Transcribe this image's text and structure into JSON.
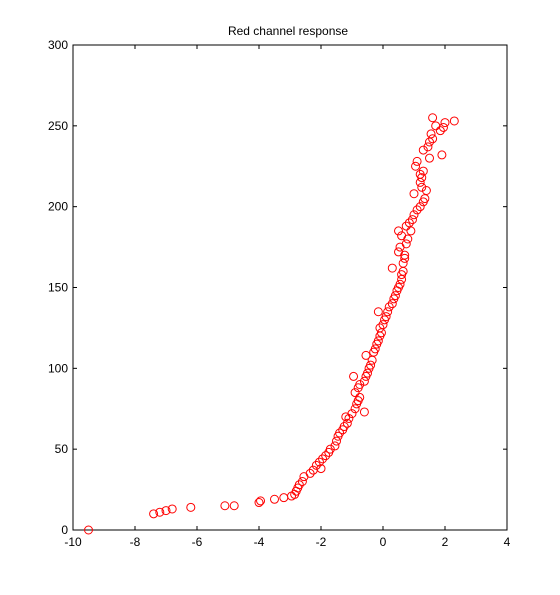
{
  "chart_data": {
    "type": "scatter",
    "title": "Red channel response",
    "xlabel": "",
    "ylabel": "",
    "xlim": [
      -10,
      4
    ],
    "ylim": [
      0,
      300
    ],
    "xticks": [
      -10,
      -8,
      -6,
      -4,
      -2,
      0,
      2,
      4
    ],
    "yticks": [
      0,
      50,
      100,
      150,
      200,
      250,
      300
    ],
    "grid": false,
    "marker": "circle-open",
    "color": "#ff0000",
    "series": [
      {
        "points": [
          [
            -9.5,
            0
          ],
          [
            -7.4,
            10
          ],
          [
            -7.2,
            11
          ],
          [
            -7.0,
            12
          ],
          [
            -6.8,
            13
          ],
          [
            -6.2,
            14
          ],
          [
            -5.1,
            15
          ],
          [
            -4.8,
            15
          ],
          [
            -4.0,
            17
          ],
          [
            -3.95,
            18
          ],
          [
            -3.5,
            19
          ],
          [
            -3.2,
            20
          ],
          [
            -2.95,
            21
          ],
          [
            -2.85,
            22
          ],
          [
            -2.8,
            24
          ],
          [
            -2.75,
            26
          ],
          [
            -2.7,
            28
          ],
          [
            -2.6,
            30
          ],
          [
            -2.55,
            33
          ],
          [
            -2.35,
            35
          ],
          [
            -2.25,
            37
          ],
          [
            -2.15,
            40
          ],
          [
            -2.05,
            42
          ],
          [
            -1.95,
            44
          ],
          [
            -1.85,
            46
          ],
          [
            -1.75,
            48
          ],
          [
            -1.7,
            50
          ],
          [
            -1.55,
            52
          ],
          [
            -1.5,
            55
          ],
          [
            -1.45,
            58
          ],
          [
            -1.4,
            60
          ],
          [
            -1.3,
            62
          ],
          [
            -1.25,
            64
          ],
          [
            -1.15,
            66
          ],
          [
            -1.1,
            69
          ],
          [
            -1.0,
            72
          ],
          [
            -0.9,
            75
          ],
          [
            -0.85,
            78
          ],
          [
            -0.8,
            80
          ],
          [
            -0.75,
            82
          ],
          [
            -0.9,
            85
          ],
          [
            -0.8,
            88
          ],
          [
            -0.75,
            90
          ],
          [
            -0.6,
            92
          ],
          [
            -0.55,
            95
          ],
          [
            -0.5,
            97
          ],
          [
            -0.45,
            100
          ],
          [
            -0.4,
            102
          ],
          [
            -0.35,
            105
          ],
          [
            -0.55,
            108
          ],
          [
            -0.3,
            110
          ],
          [
            -0.25,
            112
          ],
          [
            -0.2,
            115
          ],
          [
            -0.15,
            117
          ],
          [
            -0.1,
            120
          ],
          [
            -0.05,
            122
          ],
          [
            -0.1,
            125
          ],
          [
            0.0,
            127
          ],
          [
            0.05,
            130
          ],
          [
            0.1,
            132
          ],
          [
            0.15,
            135
          ],
          [
            0.2,
            138
          ],
          [
            0.3,
            140
          ],
          [
            0.35,
            143
          ],
          [
            0.4,
            145
          ],
          [
            0.45,
            148
          ],
          [
            0.5,
            150
          ],
          [
            0.55,
            152
          ],
          [
            0.6,
            155
          ],
          [
            0.6,
            158
          ],
          [
            0.65,
            160
          ],
          [
            0.3,
            162
          ],
          [
            0.65,
            165
          ],
          [
            0.7,
            168
          ],
          [
            0.7,
            170
          ],
          [
            0.5,
            172
          ],
          [
            0.55,
            175
          ],
          [
            0.75,
            177
          ],
          [
            0.8,
            180
          ],
          [
            0.6,
            182
          ],
          [
            0.9,
            185
          ],
          [
            0.75,
            188
          ],
          [
            0.85,
            190
          ],
          [
            0.95,
            192
          ],
          [
            1.0,
            195
          ],
          [
            1.1,
            198
          ],
          [
            1.2,
            200
          ],
          [
            1.3,
            203
          ],
          [
            1.35,
            205
          ],
          [
            1.0,
            208
          ],
          [
            1.4,
            210
          ],
          [
            1.25,
            212
          ],
          [
            1.2,
            215
          ],
          [
            1.25,
            218
          ],
          [
            1.2,
            220
          ],
          [
            1.3,
            222
          ],
          [
            1.05,
            225
          ],
          [
            1.1,
            228
          ],
          [
            1.5,
            230
          ],
          [
            1.9,
            232
          ],
          [
            1.3,
            235
          ],
          [
            1.45,
            237
          ],
          [
            1.5,
            240
          ],
          [
            1.6,
            242
          ],
          [
            1.55,
            245
          ],
          [
            1.85,
            247
          ],
          [
            1.95,
            249
          ],
          [
            2.0,
            252
          ],
          [
            2.3,
            253
          ],
          [
            1.6,
            255
          ],
          [
            -0.6,
            73
          ],
          [
            -0.95,
            95
          ],
          [
            -1.2,
            70
          ],
          [
            -2.0,
            38
          ],
          [
            -0.15,
            135
          ],
          [
            0.5,
            185
          ],
          [
            1.7,
            250
          ]
        ]
      }
    ]
  }
}
